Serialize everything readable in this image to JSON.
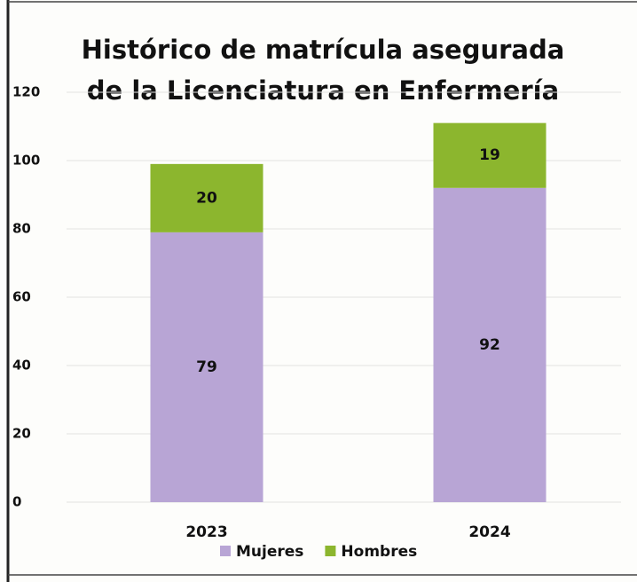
{
  "chart_data": {
    "type": "stacked_bar",
    "title": [
      "Histórico de matrícula asegurada",
      "de la Licenciatura en Enfermería"
    ],
    "categories": [
      "2023",
      "2024"
    ],
    "series": [
      {
        "name": "Mujeres",
        "color": "#b8a5d5",
        "values": [
          79,
          92
        ]
      },
      {
        "name": "Hombres",
        "color": "#8cb62e",
        "values": [
          20,
          19
        ]
      }
    ],
    "ylim": [
      0,
      120
    ],
    "yticks": [
      0,
      20,
      40,
      60,
      80,
      100,
      120
    ],
    "grid": true,
    "legend": "bottom"
  }
}
